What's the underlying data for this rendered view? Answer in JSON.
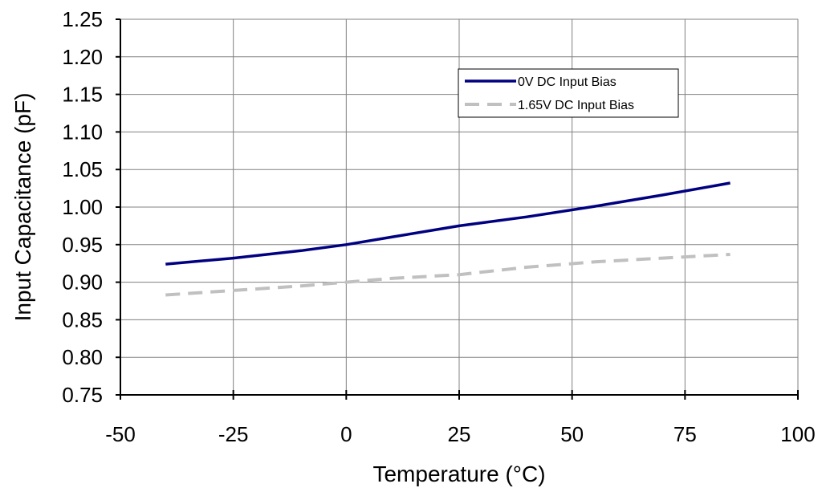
{
  "chart_data": {
    "type": "line",
    "xlabel": "Temperature (°C)",
    "ylabel": "Input Capacitance (pF)",
    "xlim": [
      -50,
      100
    ],
    "ylim": [
      0.75,
      1.25
    ],
    "xticks": [
      -50,
      -25,
      0,
      25,
      50,
      75,
      100
    ],
    "xtick_labels": [
      "-50",
      "-25",
      "0",
      "25",
      "50",
      "75",
      "100"
    ],
    "yticks": [
      0.75,
      0.8,
      0.85,
      0.9,
      0.95,
      1.0,
      1.05,
      1.1,
      1.15,
      1.2,
      1.25
    ],
    "ytick_labels": [
      "0.75",
      "0.80",
      "0.85",
      "0.90",
      "0.95",
      "1.00",
      "1.05",
      "1.10",
      "1.15",
      "1.20",
      "1.25"
    ],
    "grid": true,
    "legend_position": "top-right",
    "series": [
      {
        "name": "0V DC Input Bias",
        "color": "#000080",
        "style": "solid",
        "x": [
          -40,
          -25,
          -10,
          0,
          10,
          25,
          40,
          55,
          70,
          85
        ],
        "y": [
          0.924,
          0.932,
          0.942,
          0.95,
          0.96,
          0.975,
          0.987,
          1.001,
          1.016,
          1.032
        ]
      },
      {
        "name": "1.65V DC Input Bias",
        "color": "#c0c0c0",
        "style": "dashed",
        "x": [
          -40,
          -25,
          -10,
          0,
          10,
          25,
          40,
          55,
          70,
          85
        ],
        "y": [
          0.883,
          0.889,
          0.895,
          0.9,
          0.905,
          0.91,
          0.92,
          0.927,
          0.932,
          0.937
        ]
      }
    ]
  }
}
